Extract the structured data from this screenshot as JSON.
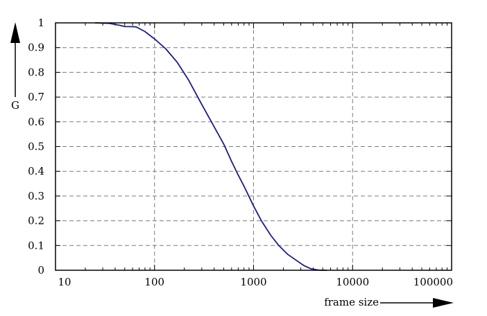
{
  "chart_data": {
    "type": "line",
    "title": "",
    "xlabel": "frame size",
    "ylabel": "G",
    "x_scale": "log",
    "xlim": [
      10,
      100000
    ],
    "ylim": [
      0,
      1
    ],
    "grid": true,
    "x_ticks": [
      10,
      100,
      1000,
      10000,
      100000
    ],
    "x_tick_labels": [
      "10",
      "100",
      "1000",
      "10000",
      "100000"
    ],
    "y_ticks": [
      0,
      0.1,
      0.2,
      0.3,
      0.4,
      0.5,
      0.6,
      0.7,
      0.8,
      0.9,
      1
    ],
    "y_tick_labels": [
      "0",
      "0.1",
      "0.2",
      "0.3",
      "0.4",
      "0.5",
      "0.6",
      "0.7",
      "0.8",
      "0.9",
      "1"
    ],
    "series": [
      {
        "color": "#1a1a8c",
        "x": [
          25,
          35,
          45,
          50,
          55,
          65,
          80,
          100,
          130,
          170,
          220,
          300,
          400,
          500,
          600,
          700,
          800,
          1000,
          1200,
          1500,
          1800,
          2200,
          2700,
          3200,
          3800,
          4500,
          5000,
          5500
        ],
        "y": [
          1.0,
          0.998,
          0.99,
          0.985,
          0.985,
          0.984,
          0.965,
          0.935,
          0.895,
          0.84,
          0.77,
          0.67,
          0.58,
          0.51,
          0.44,
          0.385,
          0.34,
          0.26,
          0.2,
          0.14,
          0.1,
          0.065,
          0.04,
          0.02,
          0.006,
          0.001,
          0.0,
          0.0
        ]
      }
    ]
  }
}
